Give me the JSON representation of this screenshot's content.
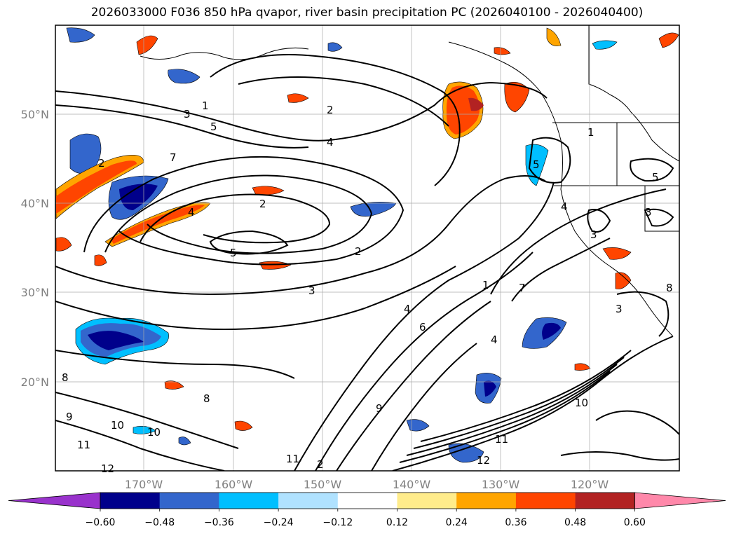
{
  "title": "2026033000 F036 850 hPa qvapor, river basin precipitation PC (2026040100 - 2026040400)",
  "lat_labels": [
    "50°N",
    "40°N",
    "30°N",
    "20°N"
  ],
  "lon_labels": [
    "170°W",
    "160°W",
    "150°W",
    "140°W",
    "130°W",
    "120°W"
  ],
  "contour_labels": [
    "1",
    "2",
    "3",
    "4",
    "5",
    "7",
    "2",
    "4",
    "5",
    "2",
    "2",
    "5",
    "3",
    "1",
    "7",
    "4",
    "6",
    "8",
    "9",
    "11",
    "11",
    "10",
    "10",
    "11",
    "12",
    "9",
    "8",
    "2",
    "4",
    "1",
    "3",
    "5",
    "3",
    "3",
    "4",
    "10",
    "12",
    "8"
  ],
  "colorbar": {
    "colors": [
      "#9932cc",
      "#00008b",
      "#3366cc",
      "#00bfff",
      "#b0e2ff",
      "#ffffff",
      "#ffec8b",
      "#ffa500",
      "#ff4500",
      "#b22222",
      "#ff88aa"
    ],
    "ticks": [
      "−0.60",
      "−0.48",
      "−0.36",
      "−0.24",
      "−0.12",
      "0.12",
      "0.24",
      "0.36",
      "0.48",
      "0.60"
    ]
  }
}
